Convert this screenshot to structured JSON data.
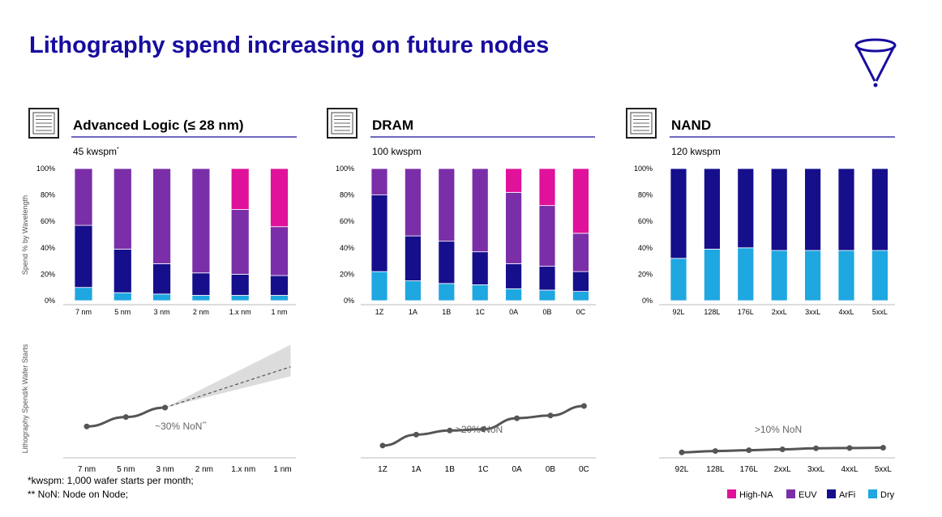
{
  "title": "Lithography spend increasing on future nodes",
  "footnotes": [
    "*kwspm: 1,000 wafer starts per month;",
    "** NoN: Node on Node;"
  ],
  "colors": {
    "high_na": "#e0119a",
    "euv": "#7a2fa8",
    "arfi": "#150f8c",
    "dry": "#1ea7e0",
    "title": "#170c9e",
    "line": "#555555",
    "cone": "#dcdcdc"
  },
  "chart_data": [
    {
      "type": "bar",
      "stacked": true,
      "panel": "advanced-logic",
      "title": "Advanced Logic (≤ 28 nm)",
      "subtitle": "45 kwspm",
      "subtitle_mark": "*",
      "ylabel": "Spend % by Wavelength",
      "yticks": [
        "100%",
        "80%",
        "60%",
        "40%",
        "20%",
        "0%"
      ],
      "ylim": [
        0,
        100
      ],
      "categories": [
        "7 nm",
        "5 nm",
        "3 nm",
        "2 nm",
        "1.x nm",
        "1 nm"
      ],
      "series": [
        {
          "name": "Dry",
          "values": [
            10,
            6,
            5,
            4,
            4,
            4
          ]
        },
        {
          "name": "ArFi",
          "values": [
            47,
            33,
            23,
            17,
            16,
            15
          ]
        },
        {
          "name": "EUV",
          "values": [
            43,
            61,
            72,
            79,
            49,
            37
          ]
        },
        {
          "name": "High-NA",
          "values": [
            0,
            0,
            0,
            0,
            31,
            44
          ]
        }
      ]
    },
    {
      "type": "bar",
      "stacked": true,
      "panel": "dram",
      "title": "DRAM",
      "subtitle": "100 kwspm",
      "yticks": [
        "100%",
        "80%",
        "60%",
        "40%",
        "20%",
        "0%"
      ],
      "ylim": [
        0,
        100
      ],
      "categories": [
        "1Z",
        "1A",
        "1B",
        "1C",
        "0A",
        "0B",
        "0C"
      ],
      "series": [
        {
          "name": "Dry",
          "values": [
            22,
            15,
            13,
            12,
            9,
            8,
            7
          ]
        },
        {
          "name": "ArFi",
          "values": [
            58,
            34,
            32,
            25,
            19,
            18,
            15
          ]
        },
        {
          "name": "EUV",
          "values": [
            20,
            51,
            55,
            63,
            54,
            46,
            29
          ]
        },
        {
          "name": "High-NA",
          "values": [
            0,
            0,
            0,
            0,
            18,
            28,
            49
          ]
        }
      ]
    },
    {
      "type": "bar",
      "stacked": true,
      "panel": "nand",
      "title": "NAND",
      "subtitle": "120 kwspm",
      "yticks": [
        "100%",
        "80%",
        "60%",
        "40%",
        "20%",
        "0%"
      ],
      "ylim": [
        0,
        100
      ],
      "categories": [
        "92L",
        "128L",
        "176L",
        "2xxL",
        "3xxL",
        "4xxL",
        "5xxL"
      ],
      "series": [
        {
          "name": "Dry",
          "values": [
            32,
            39,
            40,
            38,
            38,
            38,
            38
          ]
        },
        {
          "name": "ArFi",
          "values": [
            68,
            61,
            60,
            62,
            62,
            62,
            62
          ]
        },
        {
          "name": "EUV",
          "values": [
            0,
            0,
            0,
            0,
            0,
            0,
            0
          ]
        },
        {
          "name": "High-NA",
          "values": [
            0,
            0,
            0,
            0,
            0,
            0,
            0
          ]
        }
      ]
    },
    {
      "type": "line",
      "panel": "advanced-logic",
      "ylabel": "Lithography Spend/k Wafer Starts",
      "categories": [
        "7 nm",
        "5 nm",
        "3 nm",
        "2 nm",
        "1.x nm",
        "1 nm"
      ],
      "values": [
        1.0,
        1.3,
        1.6,
        null,
        null,
        null
      ],
      "projection": {
        "from": 1.6,
        "to": 2.9,
        "band_low": 2.6,
        "band_high": 3.6
      },
      "ylim": [
        0,
        4
      ],
      "annotation": "~30% NoN",
      "annotation_mark": "**"
    },
    {
      "type": "line",
      "panel": "dram",
      "categories": [
        "1Z",
        "1A",
        "1B",
        "1C",
        "0A",
        "0B",
        "0C"
      ],
      "values": [
        0.45,
        0.85,
        1.0,
        1.05,
        1.45,
        1.55,
        1.9
      ],
      "ylim": [
        0,
        4.6
      ],
      "annotation": ">20% NoN"
    },
    {
      "type": "line",
      "panel": "nand",
      "categories": [
        "92L",
        "128L",
        "176L",
        "2xxL",
        "3xxL",
        "4xxL",
        "5xxL"
      ],
      "values": [
        0.2,
        0.25,
        0.28,
        0.31,
        0.35,
        0.36,
        0.37
      ],
      "ylim": [
        0,
        4.6
      ],
      "annotation": ">10% NoN"
    }
  ],
  "legend": [
    {
      "label": "High-NA",
      "color": "#e0119a"
    },
    {
      "label": "EUV",
      "color": "#7a2fa8"
    },
    {
      "label": "ArFi",
      "color": "#150f8c"
    },
    {
      "label": "Dry",
      "color": "#1ea7e0"
    }
  ]
}
